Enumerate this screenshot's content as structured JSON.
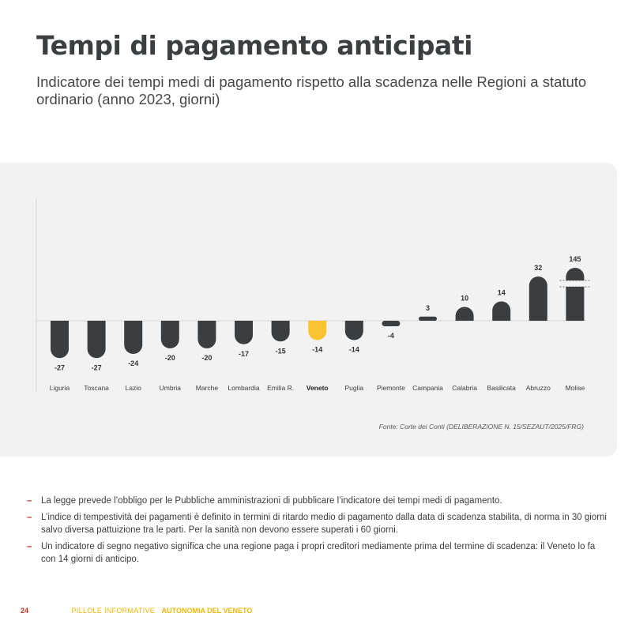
{
  "title": "Tempi di pagamento anticipati",
  "subtitle": "Indicatore dei tempi medi di pagamento rispetto alla scadenza nelle Regioni a statuto ordinario (anno 2023, giorni)",
  "source": "Fonte: Corte dei Conti (DELIBERAZIONE N. 15/SEZAUT/2025/FRG)",
  "notes": [
    "La legge prevede l’obbligo per le Pubbliche amministrazioni di pubblicare l’indicatore dei tempi medi di pagamento.",
    "L’indice di tempestività dei pagamenti è definito in termini di ritardo medio di pagamento dalla data di scadenza stabilita, di norma in 30 giorni salvo diversa pattuizione tra le parti. Per la sanità non devono essere superati i 60 giorni.",
    "Un indicatore di segno negativo significa che una regione paga i propri creditori mediamente prima del termine di scadenza: il Veneto lo fa con 14 giorni di anticipo."
  ],
  "note_marker": "–",
  "footer": {
    "page_number": "24",
    "series": "PILLOLE INFORMATIVE",
    "brand": "AUTONOMIA DEL VENETO"
  },
  "colors": {
    "bar": "#3b3e41",
    "highlight": "#f9c42f",
    "accent": "#c8321e",
    "panel": "#f2f2f2"
  },
  "chart_data": {
    "type": "bar",
    "categories": [
      "Liguria",
      "Toscana",
      "Lazio",
      "Umbria",
      "Marche",
      "Lombardia",
      "Emilia R.",
      "Veneto",
      "Puglia",
      "Piemonte",
      "Campania",
      "Calabria",
      "Basilicata",
      "Abruzzo",
      "Molise"
    ],
    "values": [
      -27,
      -27,
      -24,
      -20,
      -20,
      -17,
      -15,
      -14,
      -14,
      -4,
      3,
      10,
      14,
      32,
      145
    ],
    "data_labels": [
      "-27",
      "-27",
      "-24",
      "-20",
      "-20",
      "-17",
      "-15",
      "-14",
      "-14",
      "-4",
      "3",
      "10",
      "14",
      "32",
      "145"
    ],
    "highlight_category": "Veneto",
    "axis_break_on": "Molise",
    "grid": false
  }
}
